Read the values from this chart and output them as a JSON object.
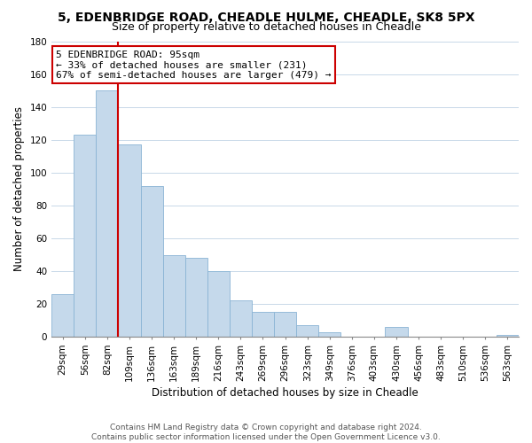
{
  "title": "5, EDENBRIDGE ROAD, CHEADLE HULME, CHEADLE, SK8 5PX",
  "subtitle": "Size of property relative to detached houses in Cheadle",
  "xlabel": "Distribution of detached houses by size in Cheadle",
  "ylabel": "Number of detached properties",
  "bar_labels": [
    "29sqm",
    "56sqm",
    "82sqm",
    "109sqm",
    "136sqm",
    "163sqm",
    "189sqm",
    "216sqm",
    "243sqm",
    "269sqm",
    "296sqm",
    "323sqm",
    "349sqm",
    "376sqm",
    "403sqm",
    "430sqm",
    "456sqm",
    "483sqm",
    "510sqm",
    "536sqm",
    "563sqm"
  ],
  "bar_values": [
    26,
    123,
    150,
    117,
    92,
    50,
    48,
    40,
    22,
    15,
    15,
    7,
    3,
    0,
    0,
    6,
    0,
    0,
    0,
    0,
    1
  ],
  "bar_color": "#c5d9eb",
  "bar_edge_color": "#8ab4d4",
  "ylim": [
    0,
    180
  ],
  "vline_x": 2.5,
  "annotation_text": "5 EDENBRIDGE ROAD: 95sqm\n← 33% of detached houses are smaller (231)\n67% of semi-detached houses are larger (479) →",
  "annotation_box_color": "#ffffff",
  "annotation_box_edge": "#cc0000",
  "vline_color": "#cc0000",
  "footer_line1": "Contains HM Land Registry data © Crown copyright and database right 2024.",
  "footer_line2": "Contains public sector information licensed under the Open Government Licence v3.0.",
  "title_fontsize": 10,
  "subtitle_fontsize": 9,
  "axis_label_fontsize": 8.5,
  "tick_fontsize": 7.5,
  "annotation_fontsize": 8,
  "footer_fontsize": 6.5,
  "background_color": "#ffffff",
  "grid_color": "#c8d8e8",
  "yticks": [
    0,
    20,
    40,
    60,
    80,
    100,
    120,
    140,
    160,
    180
  ]
}
